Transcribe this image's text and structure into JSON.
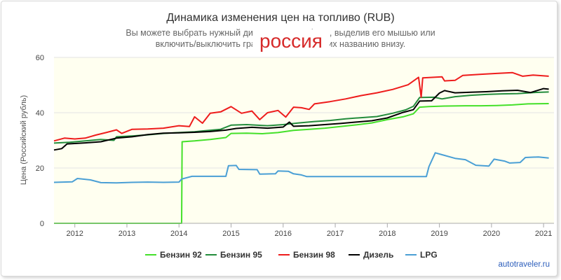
{
  "chart_data": {
    "type": "line",
    "title": "Динамика изменения цен на топливо (RUB)",
    "subtitle_line1": "Вы можете выбрать нужный диапазон на графике, выделив его мышью или",
    "subtitle_line2": "включить/выключить графики, кликнув по их названию внизу.",
    "country_label": "россия",
    "ylabel": "Цена (Российский рубль)",
    "xlabel": "",
    "ylim": [
      0,
      60
    ],
    "yticks": [
      0,
      20,
      40,
      60
    ],
    "xlim": [
      2011.6,
      2021.2
    ],
    "xticks": [
      "2012",
      "2013",
      "2014",
      "2015",
      "2016",
      "2017",
      "2018",
      "2019",
      "2020",
      "2021"
    ],
    "grid": true,
    "legend_position": "bottom",
    "series": [
      {
        "name": "Бензин 92",
        "color": "#44e02a",
        "points": [
          [
            2011.6,
            0
          ],
          [
            2014.05,
            0
          ],
          [
            2014.06,
            29.5
          ],
          [
            2014.3,
            29.8
          ],
          [
            2014.6,
            30.3
          ],
          [
            2014.9,
            31.0
          ],
          [
            2015.0,
            32.5
          ],
          [
            2015.3,
            32.6
          ],
          [
            2015.6,
            32.4
          ],
          [
            2015.9,
            32.8
          ],
          [
            2016.2,
            33.6
          ],
          [
            2016.5,
            34.0
          ],
          [
            2016.8,
            34.4
          ],
          [
            2017.1,
            35.0
          ],
          [
            2017.4,
            35.6
          ],
          [
            2017.7,
            36.3
          ],
          [
            2018.0,
            37.5
          ],
          [
            2018.3,
            38.5
          ],
          [
            2018.5,
            39.6
          ],
          [
            2018.62,
            42.0
          ],
          [
            2018.8,
            42.2
          ],
          [
            2019.1,
            42.4
          ],
          [
            2019.5,
            42.5
          ],
          [
            2019.8,
            42.5
          ],
          [
            2020.1,
            42.6
          ],
          [
            2020.4,
            42.8
          ],
          [
            2020.7,
            43.2
          ],
          [
            2021.1,
            43.3
          ]
        ]
      },
      {
        "name": "Бензин 95",
        "color": "#238c3c",
        "points": [
          [
            2011.6,
            29.0
          ],
          [
            2011.9,
            29.3
          ],
          [
            2012.2,
            29.8
          ],
          [
            2012.5,
            30.3
          ],
          [
            2012.75,
            30.0
          ],
          [
            2012.8,
            31.3
          ],
          [
            2013.1,
            31.6
          ],
          [
            2013.4,
            32.0
          ],
          [
            2013.7,
            32.5
          ],
          [
            2014.0,
            32.8
          ],
          [
            2014.3,
            33.1
          ],
          [
            2014.5,
            33.5
          ],
          [
            2014.8,
            34.0
          ],
          [
            2015.0,
            35.5
          ],
          [
            2015.3,
            35.7
          ],
          [
            2015.7,
            35.3
          ],
          [
            2016.0,
            35.7
          ],
          [
            2016.3,
            36.3
          ],
          [
            2016.6,
            36.8
          ],
          [
            2016.9,
            37.2
          ],
          [
            2017.2,
            37.8
          ],
          [
            2017.5,
            38.2
          ],
          [
            2017.8,
            38.6
          ],
          [
            2018.1,
            39.8
          ],
          [
            2018.35,
            41.0
          ],
          [
            2018.5,
            42.3
          ],
          [
            2018.62,
            45.5
          ],
          [
            2018.9,
            45.6
          ],
          [
            2019.05,
            45.0
          ],
          [
            2019.3,
            45.8
          ],
          [
            2019.6,
            46.3
          ],
          [
            2019.9,
            46.6
          ],
          [
            2020.2,
            46.8
          ],
          [
            2020.5,
            46.9
          ],
          [
            2020.8,
            47.3
          ],
          [
            2021.1,
            47.5
          ]
        ]
      },
      {
        "name": "Бензин 98",
        "color": "#ee1c1c",
        "points": [
          [
            2011.6,
            29.8
          ],
          [
            2011.8,
            30.8
          ],
          [
            2012.0,
            30.5
          ],
          [
            2012.2,
            30.8
          ],
          [
            2012.4,
            31.9
          ],
          [
            2012.6,
            32.8
          ],
          [
            2012.8,
            33.8
          ],
          [
            2012.9,
            32.5
          ],
          [
            2013.1,
            34.0
          ],
          [
            2013.4,
            34.1
          ],
          [
            2013.7,
            34.4
          ],
          [
            2014.0,
            35.3
          ],
          [
            2014.2,
            35.0
          ],
          [
            2014.3,
            38.5
          ],
          [
            2014.45,
            36.2
          ],
          [
            2014.6,
            39.8
          ],
          [
            2014.8,
            40.3
          ],
          [
            2015.0,
            42.2
          ],
          [
            2015.2,
            39.8
          ],
          [
            2015.4,
            40.6
          ],
          [
            2015.55,
            37.5
          ],
          [
            2015.7,
            40.0
          ],
          [
            2015.9,
            40.8
          ],
          [
            2016.05,
            38.4
          ],
          [
            2016.2,
            42.0
          ],
          [
            2016.35,
            41.8
          ],
          [
            2016.5,
            41.2
          ],
          [
            2016.6,
            43.2
          ],
          [
            2016.9,
            44.0
          ],
          [
            2017.2,
            45.0
          ],
          [
            2017.5,
            46.2
          ],
          [
            2017.8,
            47.2
          ],
          [
            2018.1,
            48.4
          ],
          [
            2018.4,
            50.1
          ],
          [
            2018.6,
            52.8
          ],
          [
            2018.65,
            45.6
          ],
          [
            2018.68,
            52.6
          ],
          [
            2019.05,
            53.0
          ],
          [
            2019.1,
            51.5
          ],
          [
            2019.3,
            51.7
          ],
          [
            2019.45,
            53.5
          ],
          [
            2019.8,
            53.9
          ],
          [
            2020.1,
            54.2
          ],
          [
            2020.4,
            54.5
          ],
          [
            2020.6,
            53.2
          ],
          [
            2020.8,
            53.6
          ],
          [
            2021.1,
            53.2
          ]
        ]
      },
      {
        "name": "Дизель",
        "color": "#000000",
        "points": [
          [
            2011.6,
            26.5
          ],
          [
            2011.75,
            27.0
          ],
          [
            2011.85,
            28.7
          ],
          [
            2012.2,
            29.1
          ],
          [
            2012.5,
            29.5
          ],
          [
            2012.8,
            30.8
          ],
          [
            2013.1,
            31.3
          ],
          [
            2013.4,
            32.1
          ],
          [
            2013.7,
            32.6
          ],
          [
            2014.0,
            32.7
          ],
          [
            2014.3,
            32.9
          ],
          [
            2014.6,
            33.2
          ],
          [
            2014.9,
            33.7
          ],
          [
            2015.1,
            34.3
          ],
          [
            2015.4,
            34.7
          ],
          [
            2015.7,
            34.4
          ],
          [
            2016.0,
            34.8
          ],
          [
            2016.12,
            36.6
          ],
          [
            2016.2,
            35.1
          ],
          [
            2016.5,
            35.3
          ],
          [
            2016.8,
            35.7
          ],
          [
            2017.1,
            36.1
          ],
          [
            2017.4,
            36.6
          ],
          [
            2017.7,
            37.1
          ],
          [
            2018.0,
            38.1
          ],
          [
            2018.3,
            40.1
          ],
          [
            2018.5,
            41.1
          ],
          [
            2018.62,
            44.2
          ],
          [
            2018.85,
            44.3
          ],
          [
            2019.0,
            47.1
          ],
          [
            2019.1,
            48.0
          ],
          [
            2019.3,
            47.2
          ],
          [
            2019.6,
            47.4
          ],
          [
            2019.9,
            47.6
          ],
          [
            2020.2,
            47.9
          ],
          [
            2020.5,
            48.1
          ],
          [
            2020.75,
            47.3
          ],
          [
            2021.0,
            48.7
          ],
          [
            2021.1,
            48.5
          ]
        ]
      },
      {
        "name": "LPG",
        "color": "#4a9fd5",
        "points": [
          [
            2011.6,
            14.8
          ],
          [
            2011.95,
            15.0
          ],
          [
            2012.05,
            16.2
          ],
          [
            2012.3,
            15.7
          ],
          [
            2012.5,
            14.7
          ],
          [
            2012.8,
            14.6
          ],
          [
            2013.1,
            14.8
          ],
          [
            2013.4,
            14.9
          ],
          [
            2013.7,
            14.8
          ],
          [
            2014.0,
            14.9
          ],
          [
            2014.05,
            16.0
          ],
          [
            2014.25,
            17.0
          ],
          [
            2014.9,
            17.0
          ],
          [
            2014.95,
            20.8
          ],
          [
            2015.1,
            20.9
          ],
          [
            2015.15,
            19.5
          ],
          [
            2015.5,
            19.4
          ],
          [
            2015.55,
            17.8
          ],
          [
            2015.85,
            17.9
          ],
          [
            2015.9,
            18.9
          ],
          [
            2016.1,
            18.8
          ],
          [
            2016.2,
            17.9
          ],
          [
            2016.35,
            17.5
          ],
          [
            2016.45,
            16.9
          ],
          [
            2017.0,
            16.9
          ],
          [
            2017.5,
            16.9
          ],
          [
            2018.0,
            16.9
          ],
          [
            2018.5,
            16.9
          ],
          [
            2018.75,
            16.9
          ],
          [
            2018.8,
            20.5
          ],
          [
            2018.92,
            25.5
          ],
          [
            2019.05,
            24.8
          ],
          [
            2019.3,
            23.5
          ],
          [
            2019.5,
            23.0
          ],
          [
            2019.7,
            21.0
          ],
          [
            2019.95,
            20.7
          ],
          [
            2020.05,
            23.2
          ],
          [
            2020.25,
            22.5
          ],
          [
            2020.35,
            21.8
          ],
          [
            2020.55,
            22.0
          ],
          [
            2020.65,
            23.8
          ],
          [
            2020.9,
            24.0
          ],
          [
            2021.1,
            23.6
          ]
        ]
      }
    ]
  },
  "footer": {
    "credit": "autotraveler.ru"
  }
}
